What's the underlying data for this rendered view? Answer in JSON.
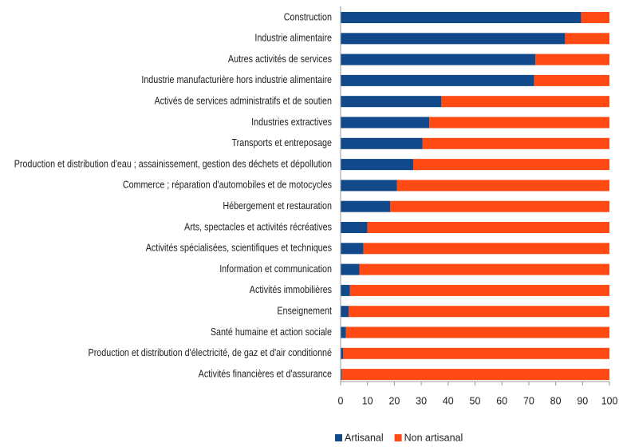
{
  "chart_data": {
    "type": "stacked_barh",
    "categories": [
      "Construction",
      "Industrie alimentaire",
      "Autres activités de services",
      "Industrie manufacturière hors industrie alimentaire",
      "Activés de services administratifs et de soutien",
      "Industries extractives",
      "Transports et entreposage",
      "Production et distribution d'eau ; assainissement, gestion des déchets et dépollution",
      "Commerce ; réparation d'automobiles et de motocycles",
      "Hébergement et restauration",
      "Arts, spectacles et activités récréatives",
      "Activités spécialisées, scientifiques et techniques",
      "Information et communication",
      "Activités immobilières",
      "Enseignement",
      "Santé humaine et action sociale",
      "Production et distribution d'électricité, de gaz et d'air conditionné",
      "Activités financières et d'assurance"
    ],
    "series": [
      {
        "name": "Artisanal",
        "color": "#12498a",
        "values": [
          89.5,
          83.5,
          72.5,
          72,
          37.5,
          33,
          30.5,
          27,
          21,
          18.5,
          10,
          8.5,
          7,
          3.5,
          3,
          2,
          1,
          0.5
        ]
      },
      {
        "name": "Non artisanal",
        "color": "#ff4a14",
        "values": [
          10.5,
          16.5,
          27.5,
          28,
          62.5,
          67,
          69.5,
          73,
          79,
          81.5,
          90,
          91.5,
          93,
          96.5,
          97,
          98,
          99,
          99.5
        ]
      }
    ],
    "xlim": [
      0,
      100
    ],
    "xticks": [
      0,
      10,
      20,
      30,
      40,
      50,
      60,
      70,
      80,
      90,
      100
    ],
    "grid": false,
    "legend": "bottom"
  }
}
